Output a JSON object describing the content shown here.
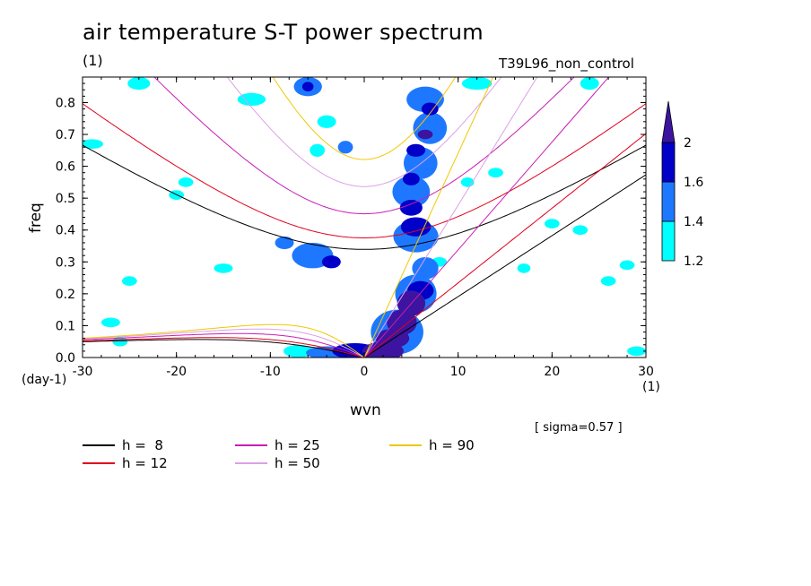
{
  "header": {
    "title": "air temperature S-T power spectrum",
    "units_top": "(1)",
    "experiment": "T39L96_non_control",
    "xlabel": "wvn",
    "ylabel": "freq",
    "x_unit": "(1)",
    "y_unit": "(day-1)",
    "sigma_note": "[ sigma=0.57 ]"
  },
  "legend": [
    {
      "label": "h =  8",
      "color": "#000000"
    },
    {
      "label": "h = 12",
      "color": "#e0001c"
    },
    {
      "label": "h = 25",
      "color": "#c81eb4"
    },
    {
      "label": "h = 50",
      "color": "#dca0e6"
    },
    {
      "label": "h = 90",
      "color": "#f0c800"
    }
  ],
  "colorbar": {
    "levels": [
      "1.2",
      "1.4",
      "1.6",
      "2"
    ],
    "colors": [
      "#00ffff",
      "#1e78ff",
      "#0000c8",
      "#3c14a0"
    ]
  },
  "chart_data": {
    "type": "heatmap",
    "title": "air temperature S-T power spectrum",
    "xlabel": "wvn",
    "ylabel": "freq",
    "xlim": [
      -30,
      30
    ],
    "ylim": [
      0,
      0.88
    ],
    "xticks": [
      "-30",
      "-20",
      "-10",
      "0",
      "10",
      "20",
      "30"
    ],
    "yticks": [
      "0.0",
      "0.1",
      "0.2",
      "0.3",
      "0.4",
      "0.5",
      "0.6",
      "0.7",
      "0.8"
    ],
    "contour_levels": [
      1.2,
      1.4,
      1.6,
      2
    ],
    "dispersion_curves": {
      "equivalent_depths": [
        8,
        12,
        25,
        50,
        90
      ],
      "families": [
        "kelvin",
        "equatorial_rossby",
        "inertia_gravity_n1"
      ]
    },
    "blobs": [
      {
        "x": 2,
        "y": 0.02,
        "rx": 2.2,
        "ry": 0.03,
        "level": 3
      },
      {
        "x": 3,
        "y": 0.06,
        "rx": 1.8,
        "ry": 0.03,
        "level": 3
      },
      {
        "x": 4,
        "y": 0.11,
        "rx": 1.6,
        "ry": 0.04,
        "level": 3
      },
      {
        "x": 5,
        "y": 0.17,
        "rx": 1.5,
        "ry": 0.04,
        "level": 3
      },
      {
        "x": 6,
        "y": 0.21,
        "rx": 1.4,
        "ry": 0.03,
        "level": 2
      },
      {
        "x": 3.5,
        "y": 0.08,
        "rx": 2.8,
        "ry": 0.07,
        "level": 1
      },
      {
        "x": 5.5,
        "y": 0.2,
        "rx": 2.2,
        "ry": 0.06,
        "level": 1
      },
      {
        "x": -1,
        "y": 0.02,
        "rx": 2.4,
        "ry": 0.025,
        "level": 2
      },
      {
        "x": -4,
        "y": 0.015,
        "rx": 2.2,
        "ry": 0.02,
        "level": 1
      },
      {
        "x": -7,
        "y": 0.02,
        "rx": 1.6,
        "ry": 0.02,
        "level": 0
      },
      {
        "x": 6.5,
        "y": 0.28,
        "rx": 1.4,
        "ry": 0.035,
        "level": 1
      },
      {
        "x": 5.5,
        "y": 0.41,
        "rx": 1.6,
        "ry": 0.03,
        "level": 2
      },
      {
        "x": 5,
        "y": 0.47,
        "rx": 1.2,
        "ry": 0.025,
        "level": 2
      },
      {
        "x": 5.5,
        "y": 0.38,
        "rx": 2.4,
        "ry": 0.05,
        "level": 1
      },
      {
        "x": 5,
        "y": 0.52,
        "rx": 2,
        "ry": 0.05,
        "level": 1
      },
      {
        "x": 6,
        "y": 0.61,
        "rx": 1.8,
        "ry": 0.05,
        "level": 1
      },
      {
        "x": 7,
        "y": 0.72,
        "rx": 1.8,
        "ry": 0.05,
        "level": 1
      },
      {
        "x": 6.5,
        "y": 0.81,
        "rx": 2,
        "ry": 0.04,
        "level": 1
      },
      {
        "x": 5.5,
        "y": 0.65,
        "rx": 1,
        "ry": 0.02,
        "level": 2
      },
      {
        "x": 7,
        "y": 0.78,
        "rx": 0.9,
        "ry": 0.02,
        "level": 2
      },
      {
        "x": 5,
        "y": 0.56,
        "rx": 0.9,
        "ry": 0.02,
        "level": 2
      },
      {
        "x": 6.5,
        "y": 0.7,
        "rx": 0.8,
        "ry": 0.015,
        "level": 3
      },
      {
        "x": -6,
        "y": 0.85,
        "rx": 1.5,
        "ry": 0.03,
        "level": 1
      },
      {
        "x": -6,
        "y": 0.85,
        "rx": 0.6,
        "ry": 0.015,
        "level": 2
      },
      {
        "x": -5.5,
        "y": 0.32,
        "rx": 2.2,
        "ry": 0.04,
        "level": 1
      },
      {
        "x": -3.5,
        "y": 0.3,
        "rx": 1,
        "ry": 0.02,
        "level": 2
      },
      {
        "x": -8.5,
        "y": 0.36,
        "rx": 1,
        "ry": 0.02,
        "level": 1
      },
      {
        "x": -4,
        "y": 0.74,
        "rx": 1,
        "ry": 0.02,
        "level": 0
      },
      {
        "x": -2,
        "y": 0.66,
        "rx": 0.8,
        "ry": 0.02,
        "level": 1
      },
      {
        "x": -5,
        "y": 0.65,
        "rx": 0.8,
        "ry": 0.02,
        "level": 0
      },
      {
        "x": -20,
        "y": 0.51,
        "rx": 0.8,
        "ry": 0.015,
        "level": 0
      },
      {
        "x": -12,
        "y": 0.81,
        "rx": 1.5,
        "ry": 0.02,
        "level": 0
      },
      {
        "x": -24,
        "y": 0.86,
        "rx": 1.2,
        "ry": 0.02,
        "level": 0
      },
      {
        "x": 12,
        "y": 0.86,
        "rx": 1.6,
        "ry": 0.02,
        "level": 0
      },
      {
        "x": 24,
        "y": 0.86,
        "rx": 1,
        "ry": 0.02,
        "level": 0
      },
      {
        "x": 14,
        "y": 0.58,
        "rx": 0.8,
        "ry": 0.015,
        "level": 0
      },
      {
        "x": 20,
        "y": 0.42,
        "rx": 0.8,
        "ry": 0.015,
        "level": 0
      },
      {
        "x": 26,
        "y": 0.24,
        "rx": 0.8,
        "ry": 0.015,
        "level": 0
      },
      {
        "x": 23,
        "y": 0.4,
        "rx": 0.8,
        "ry": 0.015,
        "level": 0
      },
      {
        "x": -27,
        "y": 0.11,
        "rx": 1,
        "ry": 0.015,
        "level": 0
      },
      {
        "x": -25,
        "y": 0.24,
        "rx": 0.8,
        "ry": 0.015,
        "level": 0
      },
      {
        "x": -15,
        "y": 0.28,
        "rx": 1,
        "ry": 0.015,
        "level": 0
      },
      {
        "x": -19,
        "y": 0.55,
        "rx": 0.8,
        "ry": 0.015,
        "level": 0
      },
      {
        "x": -29,
        "y": 0.67,
        "rx": 1.2,
        "ry": 0.015,
        "level": 0
      },
      {
        "x": 8,
        "y": 0.3,
        "rx": 0.8,
        "ry": 0.015,
        "level": 0
      },
      {
        "x": 11,
        "y": 0.55,
        "rx": 0.7,
        "ry": 0.015,
        "level": 0
      },
      {
        "x": 17,
        "y": 0.28,
        "rx": 0.7,
        "ry": 0.015,
        "level": 0
      },
      {
        "x": 29,
        "y": 0.02,
        "rx": 1,
        "ry": 0.015,
        "level": 0
      },
      {
        "x": 28,
        "y": 0.29,
        "rx": 0.8,
        "ry": 0.015,
        "level": 0
      },
      {
        "x": -26,
        "y": 0.05,
        "rx": 0.8,
        "ry": 0.015,
        "level": 0
      }
    ]
  }
}
